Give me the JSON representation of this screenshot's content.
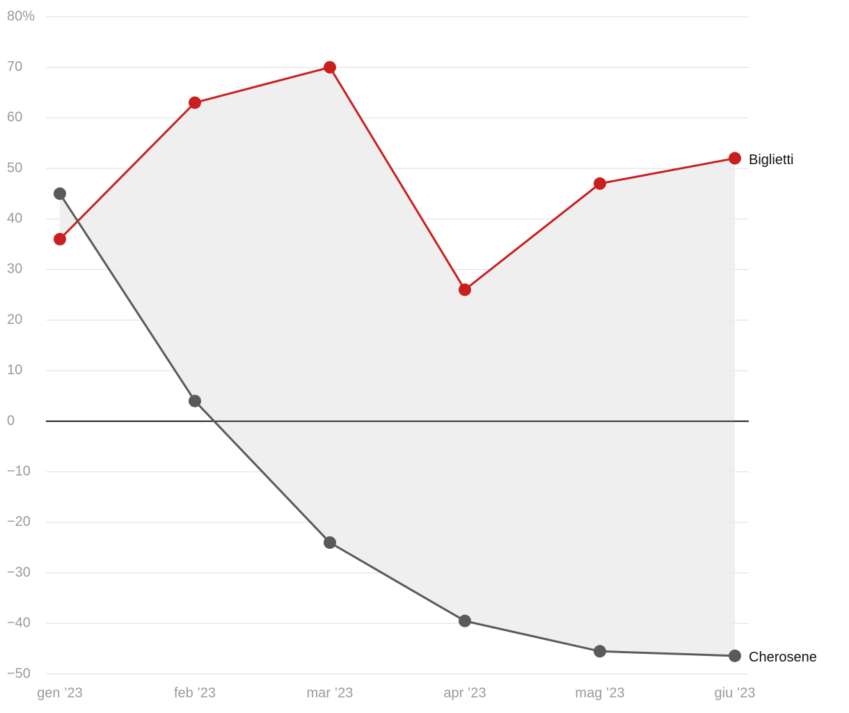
{
  "chart_data": {
    "type": "line",
    "categories": [
      "gen ’23",
      "feb ’23",
      "mar ’23",
      "apr ’23",
      "mag ’23",
      "giu ’23"
    ],
    "series": [
      {
        "name": "Biglietti",
        "color": "#c9201f",
        "values": [
          36,
          63,
          70,
          26,
          47,
          52
        ]
      },
      {
        "name": "Cherosene",
        "color": "#5a5a5a",
        "values": [
          45,
          4,
          -24,
          -39.5,
          -45.5,
          -46.4
        ]
      }
    ],
    "ylim": [
      -50,
      80
    ],
    "yticks": [
      {
        "value": -50,
        "label": "−50"
      },
      {
        "value": -40,
        "label": "−40"
      },
      {
        "value": -30,
        "label": "−30"
      },
      {
        "value": -20,
        "label": "−20"
      },
      {
        "value": -10,
        "label": "−10"
      },
      0,
      10,
      20,
      30,
      40,
      50,
      60,
      70,
      {
        "value": 80,
        "label": "80%"
      }
    ],
    "grid": true,
    "area_between": true
  }
}
